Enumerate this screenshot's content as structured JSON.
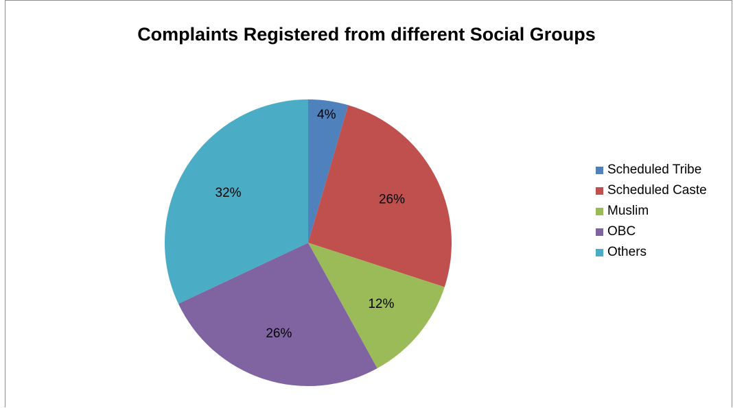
{
  "chart_data": {
    "type": "pie",
    "title": "Complaints Registered from different Social Groups",
    "categories": [
      "Scheduled Tribe",
      "Scheduled Caste",
      "Muslim",
      "OBC",
      "Others"
    ],
    "values": [
      4.5,
      25.5,
      12,
      26,
      32
    ],
    "data_labels": [
      "4%",
      "26%",
      "12%",
      "26%",
      "32%"
    ],
    "colors": [
      "#4F81BD",
      "#C0504D",
      "#9BBB59",
      "#8064A2",
      "#4BACC6"
    ],
    "legend_position": "right"
  }
}
